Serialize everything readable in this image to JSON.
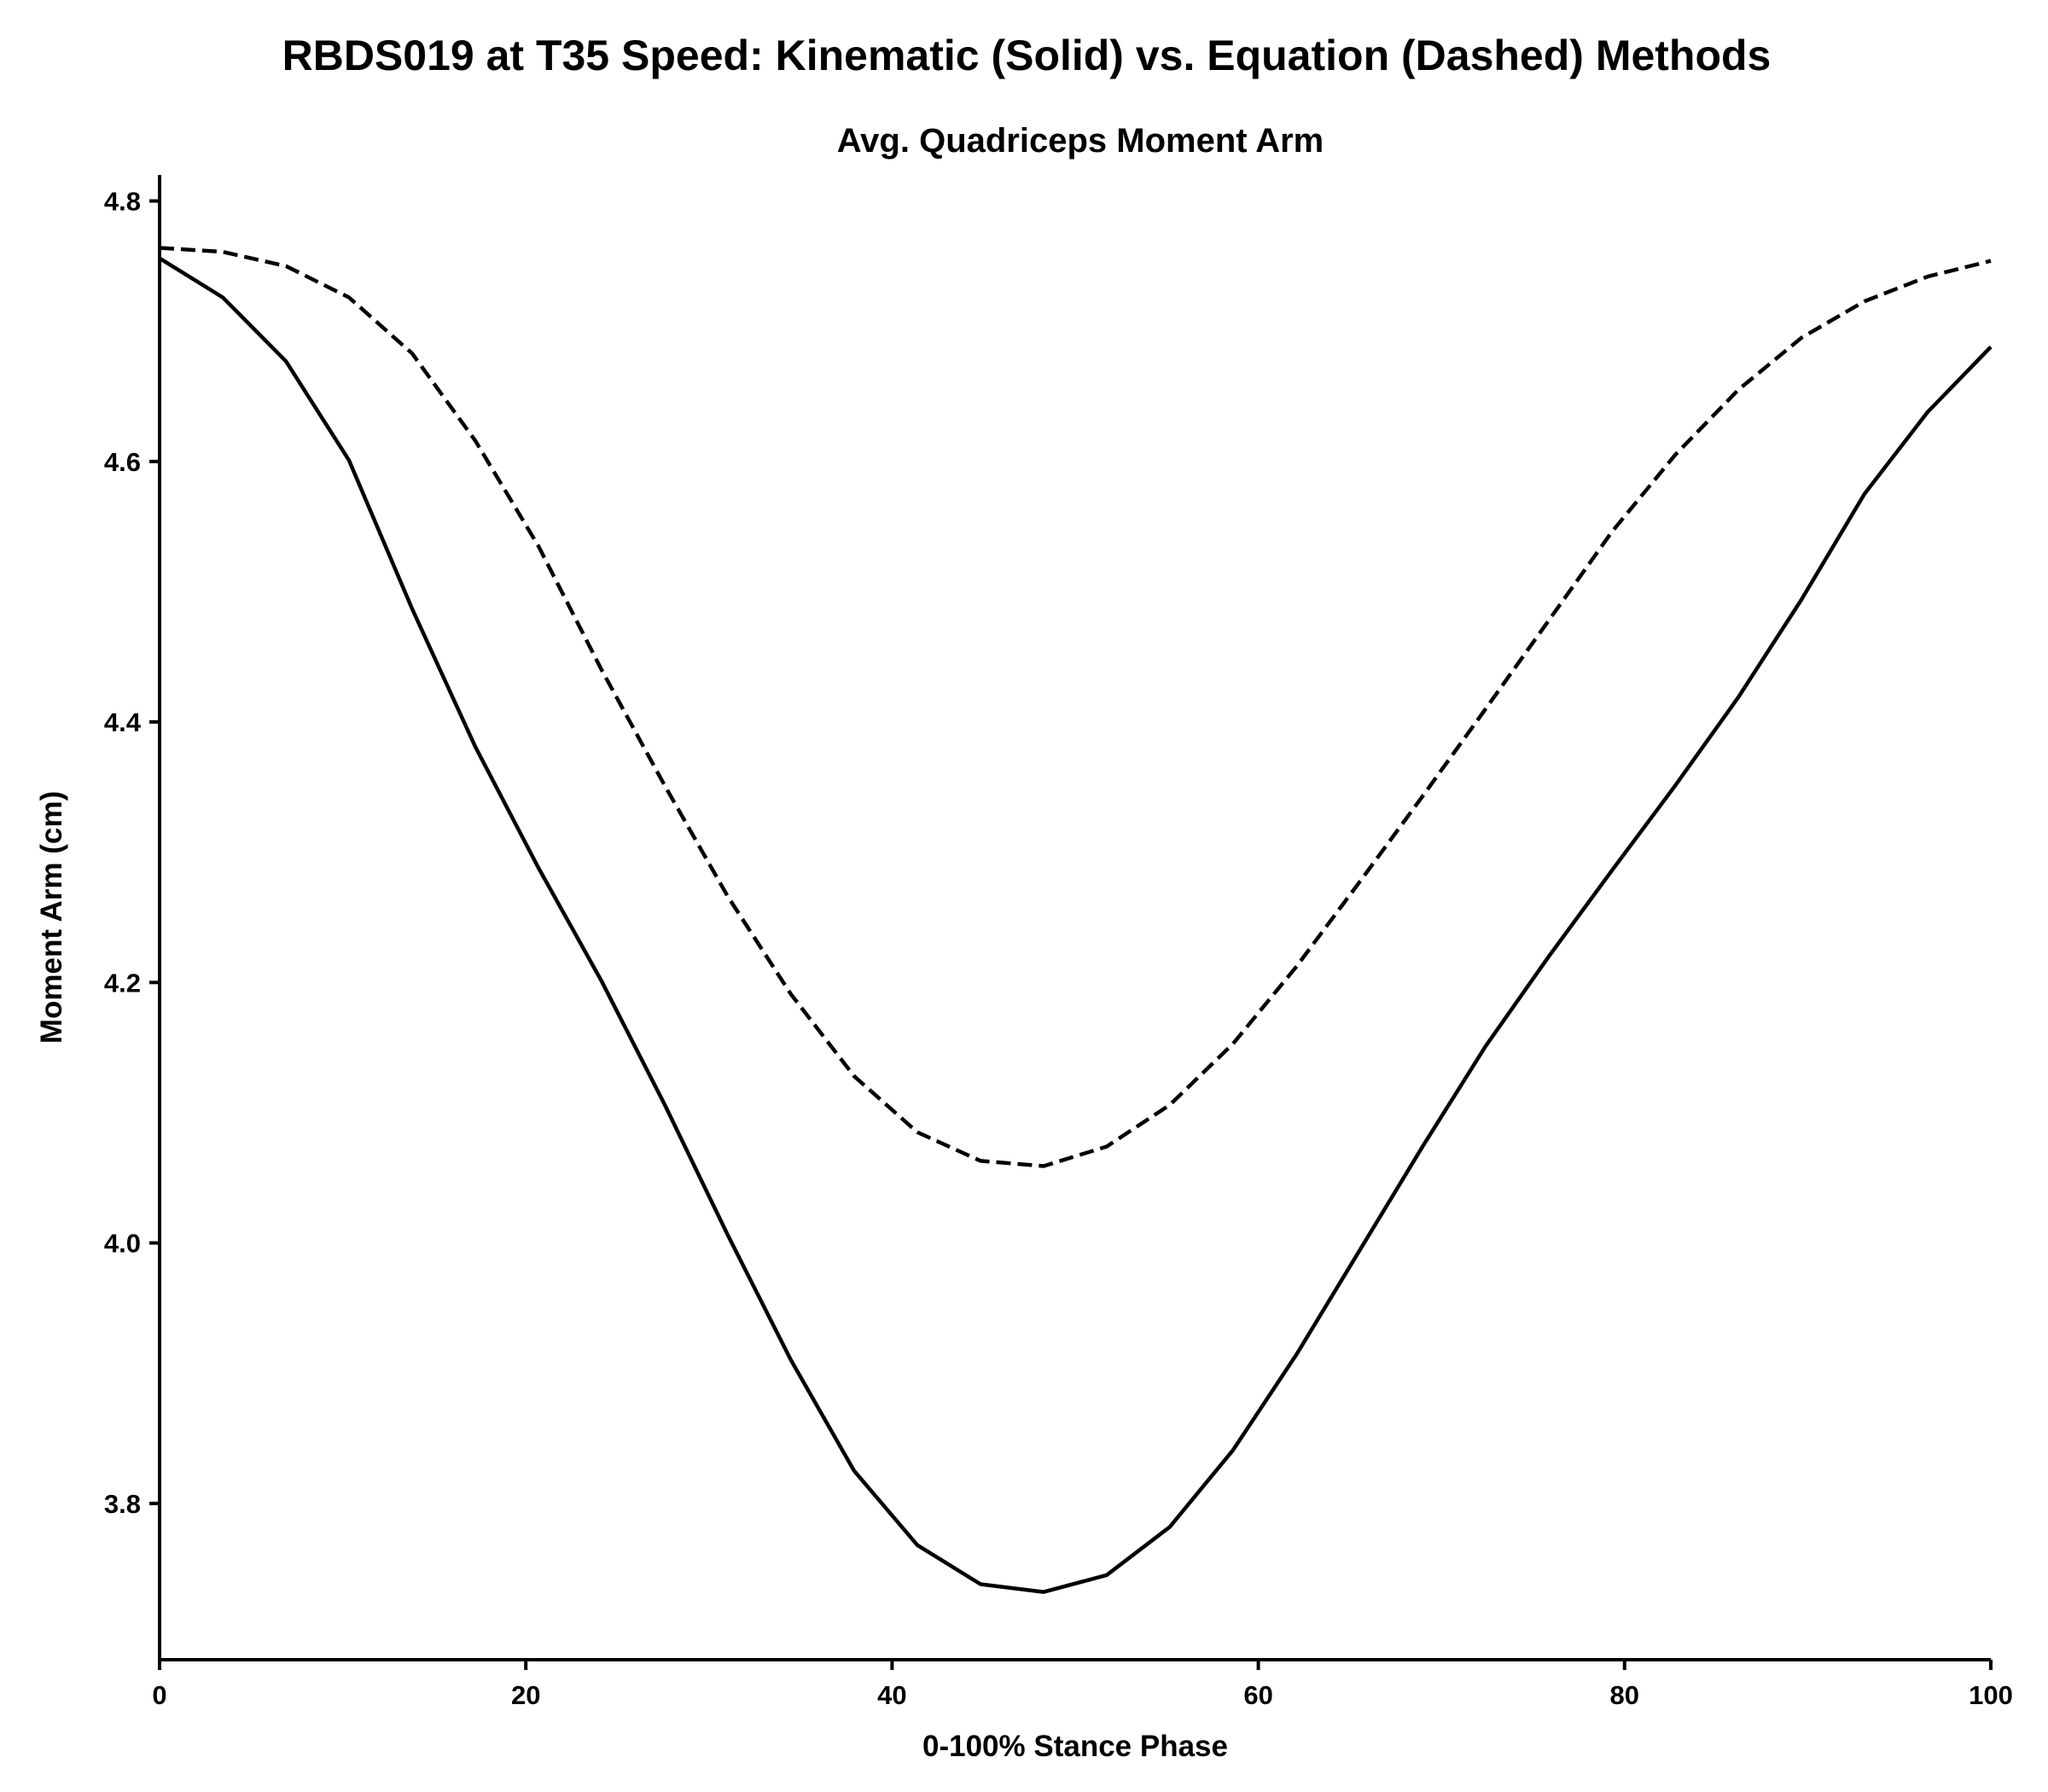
{
  "chart_data": {
    "type": "line",
    "title": "RBDS019 at T35 Speed: Kinematic (Solid) vs. Equation (Dashed) Methods",
    "subtitle": "Avg. Quadriceps Moment Arm",
    "xlabel": "0-100% Stance Phase",
    "ylabel": "Moment Arm (cm)",
    "xlim": [
      0,
      100
    ],
    "ylim": [
      3.68,
      4.82
    ],
    "xticks": [
      0,
      20,
      40,
      60,
      80,
      100
    ],
    "xtick_labels": [
      "0",
      "20",
      "40",
      "60",
      "80",
      "100"
    ],
    "yticks": [
      3.8,
      4.0,
      4.2,
      4.4,
      4.6,
      4.8
    ],
    "ytick_labels": [
      "3.8",
      "4.0",
      "4.2",
      "4.4",
      "4.6",
      "4.8"
    ],
    "grid": false,
    "legend": "none",
    "x": [
      0,
      3.45,
      6.9,
      10.34,
      13.79,
      17.24,
      20.69,
      24.14,
      27.59,
      31.03,
      34.48,
      37.93,
      41.38,
      44.83,
      48.28,
      51.72,
      55.17,
      58.62,
      62.07,
      65.52,
      68.97,
      72.41,
      75.86,
      79.31,
      82.76,
      86.21,
      89.66,
      93.1,
      96.55,
      100
    ],
    "series": [
      {
        "style": "solid",
        "color": "#000000",
        "values": [
          4.756,
          4.726,
          4.677,
          4.601,
          4.487,
          4.381,
          4.288,
          4.201,
          4.106,
          4.006,
          3.91,
          3.825,
          3.768,
          3.738,
          3.732,
          3.745,
          3.782,
          3.841,
          3.914,
          3.994,
          4.074,
          4.151,
          4.22,
          4.286,
          4.351,
          4.419,
          4.494,
          4.575,
          4.638,
          4.688
        ]
      },
      {
        "style": "dashed",
        "color": "#000000",
        "values": [
          4.764,
          4.761,
          4.75,
          4.726,
          4.683,
          4.616,
          4.535,
          4.44,
          4.351,
          4.266,
          4.191,
          4.128,
          4.085,
          4.063,
          4.059,
          4.074,
          4.106,
          4.153,
          4.212,
          4.277,
          4.343,
          4.41,
          4.478,
          4.546,
          4.605,
          4.655,
          4.695,
          4.723,
          4.742,
          4.754
        ]
      }
    ]
  }
}
